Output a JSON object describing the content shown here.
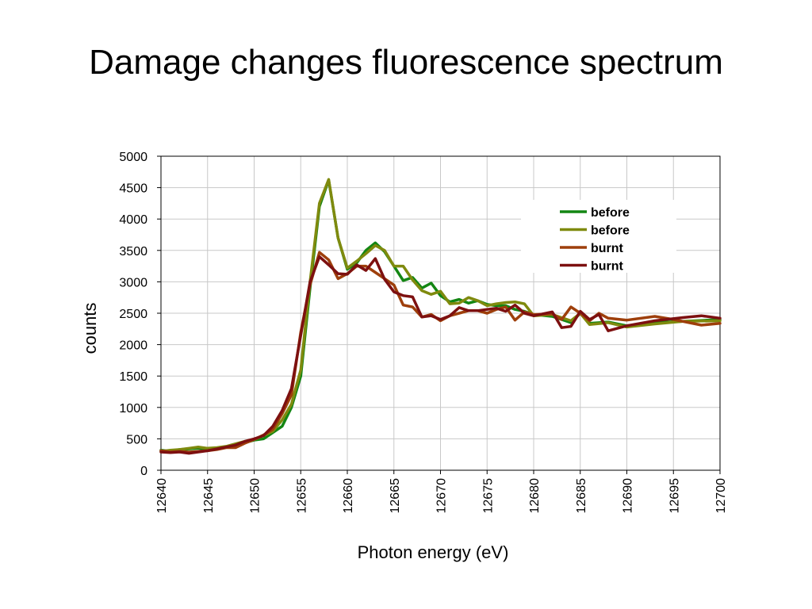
{
  "slide": {
    "title": "Damage changes fluorescence spectrum"
  },
  "chart_data": {
    "type": "line",
    "title": "",
    "xlabel": "Photon energy (eV)",
    "ylabel": "counts",
    "xlim": [
      12640,
      12700
    ],
    "ylim": [
      0,
      5000
    ],
    "xticks": [
      12640,
      12645,
      12650,
      12655,
      12660,
      12665,
      12670,
      12675,
      12680,
      12685,
      12690,
      12695,
      12700
    ],
    "yticks": [
      0,
      500,
      1000,
      1500,
      2000,
      2500,
      3000,
      3500,
      4000,
      4500,
      5000
    ],
    "grid": true,
    "legend_position": "top-right",
    "series": [
      {
        "name": "before",
        "color": "#138613",
        "points": [
          [
            12640,
            320
          ],
          [
            12641,
            300
          ],
          [
            12642,
            330
          ],
          [
            12643,
            340
          ],
          [
            12644,
            350
          ],
          [
            12645,
            330
          ],
          [
            12646,
            350
          ],
          [
            12647,
            370
          ],
          [
            12648,
            400
          ],
          [
            12649,
            440
          ],
          [
            12650,
            480
          ],
          [
            12651,
            500
          ],
          [
            12652,
            600
          ],
          [
            12653,
            700
          ],
          [
            12654,
            1000
          ],
          [
            12655,
            1500
          ],
          [
            12656,
            2900
          ],
          [
            12657,
            4200
          ],
          [
            12658,
            4620
          ],
          [
            12659,
            3700
          ],
          [
            12660,
            3200
          ],
          [
            12661,
            3300
          ],
          [
            12662,
            3500
          ],
          [
            12663,
            3620
          ],
          [
            12664,
            3480
          ],
          [
            12665,
            3250
          ],
          [
            12666,
            3020
          ],
          [
            12667,
            3070
          ],
          [
            12668,
            2900
          ],
          [
            12669,
            2980
          ],
          [
            12670,
            2780
          ],
          [
            12671,
            2680
          ],
          [
            12672,
            2720
          ],
          [
            12673,
            2660
          ],
          [
            12674,
            2700
          ],
          [
            12675,
            2640
          ],
          [
            12676,
            2620
          ],
          [
            12677,
            2620
          ],
          [
            12678,
            2560
          ],
          [
            12679,
            2530
          ],
          [
            12680,
            2480
          ],
          [
            12682,
            2450
          ],
          [
            12684,
            2350
          ],
          [
            12685,
            2500
          ],
          [
            12686,
            2340
          ],
          [
            12688,
            2360
          ],
          [
            12690,
            2300
          ],
          [
            12693,
            2350
          ],
          [
            12696,
            2370
          ],
          [
            12700,
            2400
          ]
        ]
      },
      {
        "name": "before",
        "color": "#7f8a0e",
        "points": [
          [
            12640,
            300
          ],
          [
            12641,
            320
          ],
          [
            12642,
            330
          ],
          [
            12643,
            350
          ],
          [
            12644,
            370
          ],
          [
            12645,
            350
          ],
          [
            12646,
            360
          ],
          [
            12647,
            380
          ],
          [
            12648,
            420
          ],
          [
            12649,
            460
          ],
          [
            12650,
            490
          ],
          [
            12651,
            550
          ],
          [
            12652,
            620
          ],
          [
            12653,
            800
          ],
          [
            12654,
            1050
          ],
          [
            12655,
            1600
          ],
          [
            12656,
            3000
          ],
          [
            12657,
            4250
          ],
          [
            12658,
            4630
          ],
          [
            12659,
            3700
          ],
          [
            12660,
            3220
          ],
          [
            12661,
            3330
          ],
          [
            12662,
            3450
          ],
          [
            12663,
            3580
          ],
          [
            12664,
            3500
          ],
          [
            12665,
            3250
          ],
          [
            12666,
            3250
          ],
          [
            12667,
            3030
          ],
          [
            12668,
            2860
          ],
          [
            12669,
            2800
          ],
          [
            12670,
            2850
          ],
          [
            12671,
            2650
          ],
          [
            12672,
            2660
          ],
          [
            12673,
            2750
          ],
          [
            12674,
            2700
          ],
          [
            12675,
            2620
          ],
          [
            12676,
            2650
          ],
          [
            12677,
            2670
          ],
          [
            12678,
            2680
          ],
          [
            12679,
            2650
          ],
          [
            12680,
            2460
          ],
          [
            12682,
            2480
          ],
          [
            12684,
            2380
          ],
          [
            12685,
            2500
          ],
          [
            12686,
            2320
          ],
          [
            12688,
            2350
          ],
          [
            12690,
            2280
          ],
          [
            12693,
            2330
          ],
          [
            12696,
            2370
          ],
          [
            12700,
            2380
          ]
        ]
      },
      {
        "name": "burnt",
        "color": "#9e3f0b",
        "points": [
          [
            12640,
            310
          ],
          [
            12641,
            290
          ],
          [
            12642,
            300
          ],
          [
            12643,
            290
          ],
          [
            12644,
            300
          ],
          [
            12645,
            310
          ],
          [
            12646,
            330
          ],
          [
            12647,
            360
          ],
          [
            12648,
            360
          ],
          [
            12649,
            430
          ],
          [
            12650,
            490
          ],
          [
            12651,
            560
          ],
          [
            12652,
            650
          ],
          [
            12653,
            900
          ],
          [
            12654,
            1200
          ],
          [
            12655,
            2200
          ],
          [
            12656,
            2950
          ],
          [
            12657,
            3470
          ],
          [
            12658,
            3350
          ],
          [
            12659,
            3050
          ],
          [
            12660,
            3130
          ],
          [
            12661,
            3250
          ],
          [
            12662,
            3250
          ],
          [
            12663,
            3150
          ],
          [
            12664,
            3050
          ],
          [
            12665,
            2950
          ],
          [
            12666,
            2630
          ],
          [
            12667,
            2600
          ],
          [
            12668,
            2440
          ],
          [
            12669,
            2480
          ],
          [
            12670,
            2380
          ],
          [
            12671,
            2460
          ],
          [
            12672,
            2500
          ],
          [
            12673,
            2540
          ],
          [
            12674,
            2540
          ],
          [
            12675,
            2500
          ],
          [
            12676,
            2560
          ],
          [
            12677,
            2600
          ],
          [
            12678,
            2390
          ],
          [
            12679,
            2520
          ],
          [
            12680,
            2480
          ],
          [
            12682,
            2490
          ],
          [
            12683,
            2400
          ],
          [
            12684,
            2600
          ],
          [
            12685,
            2500
          ],
          [
            12686,
            2380
          ],
          [
            12687,
            2500
          ],
          [
            12688,
            2420
          ],
          [
            12690,
            2390
          ],
          [
            12693,
            2450
          ],
          [
            12695,
            2400
          ],
          [
            12698,
            2310
          ],
          [
            12700,
            2340
          ]
        ]
      },
      {
        "name": "burnt",
        "color": "#7d1010",
        "points": [
          [
            12640,
            290
          ],
          [
            12641,
            280
          ],
          [
            12642,
            290
          ],
          [
            12643,
            270
          ],
          [
            12644,
            290
          ],
          [
            12645,
            310
          ],
          [
            12646,
            340
          ],
          [
            12647,
            370
          ],
          [
            12648,
            400
          ],
          [
            12649,
            460
          ],
          [
            12650,
            500
          ],
          [
            12651,
            550
          ],
          [
            12652,
            700
          ],
          [
            12653,
            950
          ],
          [
            12654,
            1300
          ],
          [
            12655,
            2150
          ],
          [
            12656,
            3000
          ],
          [
            12657,
            3400
          ],
          [
            12658,
            3270
          ],
          [
            12659,
            3130
          ],
          [
            12660,
            3120
          ],
          [
            12661,
            3270
          ],
          [
            12662,
            3180
          ],
          [
            12663,
            3370
          ],
          [
            12664,
            3040
          ],
          [
            12665,
            2840
          ],
          [
            12666,
            2780
          ],
          [
            12667,
            2760
          ],
          [
            12668,
            2440
          ],
          [
            12669,
            2460
          ],
          [
            12670,
            2400
          ],
          [
            12671,
            2460
          ],
          [
            12672,
            2590
          ],
          [
            12673,
            2540
          ],
          [
            12674,
            2540
          ],
          [
            12675,
            2560
          ],
          [
            12676,
            2580
          ],
          [
            12677,
            2530
          ],
          [
            12678,
            2630
          ],
          [
            12679,
            2500
          ],
          [
            12680,
            2460
          ],
          [
            12682,
            2520
          ],
          [
            12683,
            2270
          ],
          [
            12684,
            2290
          ],
          [
            12685,
            2530
          ],
          [
            12686,
            2400
          ],
          [
            12687,
            2480
          ],
          [
            12688,
            2220
          ],
          [
            12690,
            2300
          ],
          [
            12693,
            2380
          ],
          [
            12696,
            2430
          ],
          [
            12698,
            2460
          ],
          [
            12700,
            2420
          ]
        ]
      }
    ]
  }
}
